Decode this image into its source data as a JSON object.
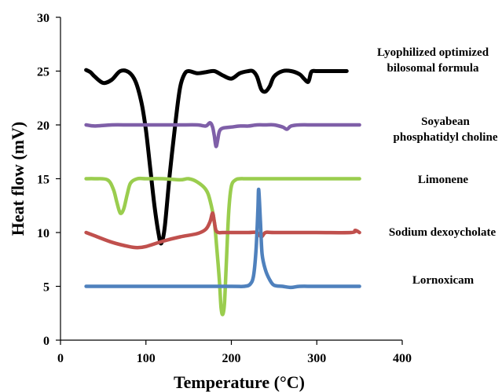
{
  "chart_data": {
    "type": "line",
    "title": "",
    "xlabel": "Temperature (°C)",
    "ylabel": "Heat flow (mV)",
    "xlim": [
      0,
      400
    ],
    "ylim": [
      0,
      30
    ],
    "xticks": [
      0,
      100,
      200,
      300,
      400
    ],
    "yticks": [
      0,
      5,
      10,
      15,
      20,
      25,
      30
    ],
    "grid": false,
    "legend_position": "right (labels beside curves)",
    "series": [
      {
        "name": "Lyophilized optimized bilosomal formula",
        "color": "#000000",
        "x": [
          30,
          35,
          40,
          50,
          60,
          70,
          80,
          88,
          95,
          100,
          105,
          110,
          115,
          118,
          122,
          128,
          135,
          140,
          145,
          150,
          160,
          170,
          180,
          190,
          200,
          210,
          220,
          225,
          230,
          235,
          240,
          245,
          250,
          260,
          270,
          280,
          285,
          290,
          293,
          295,
          300,
          310,
          320,
          335
        ],
        "y": [
          25.1,
          24.9,
          24.5,
          23.9,
          24.2,
          25.0,
          24.9,
          24.0,
          22.0,
          19.5,
          16.0,
          12.5,
          9.8,
          9.0,
          10.5,
          15.5,
          20.5,
          23.5,
          24.7,
          25.0,
          24.8,
          24.9,
          25.0,
          24.6,
          24.3,
          24.8,
          25.0,
          25.0,
          24.5,
          23.3,
          23.1,
          23.6,
          24.5,
          25.0,
          25.0,
          24.7,
          24.3,
          24.0,
          24.8,
          25.0,
          25.0,
          25.0,
          25.0,
          25.0
        ]
      },
      {
        "name": "Soyabean phosphatidyl choline",
        "color": "#7F5FA8",
        "x": [
          30,
          40,
          60,
          80,
          100,
          120,
          140,
          160,
          170,
          175,
          178,
          180,
          182,
          184,
          186,
          190,
          200,
          210,
          220,
          230,
          240,
          250,
          260,
          265,
          270,
          280,
          300,
          350
        ],
        "y": [
          20.0,
          19.9,
          20.0,
          20.0,
          20.0,
          20.0,
          20.0,
          20.0,
          19.9,
          20.2,
          19.8,
          19.0,
          18.0,
          18.6,
          19.4,
          19.7,
          19.8,
          19.9,
          19.9,
          20.0,
          20.0,
          20.0,
          19.8,
          19.6,
          19.9,
          20.0,
          20.0,
          20.0
        ]
      },
      {
        "name": "Limonene",
        "color": "#9ACD4E",
        "x": [
          30,
          40,
          55,
          62,
          66,
          70,
          74,
          78,
          82,
          90,
          100,
          120,
          140,
          150,
          160,
          170,
          175,
          180,
          183,
          186,
          188,
          190,
          192,
          194,
          197,
          200,
          205,
          210,
          220,
          250,
          300,
          350
        ],
        "y": [
          15.0,
          15.0,
          14.9,
          14.0,
          12.8,
          11.8,
          12.2,
          13.5,
          14.6,
          15.0,
          15.0,
          15.0,
          14.9,
          15.0,
          14.7,
          14.0,
          13.0,
          11.0,
          8.5,
          5.5,
          3.0,
          2.4,
          3.5,
          7.0,
          12.0,
          14.3,
          14.9,
          15.0,
          15.0,
          15.0,
          15.0,
          15.0
        ]
      },
      {
        "name": "Sodium dexoycholate",
        "color": "#C0504D",
        "x": [
          30,
          40,
          60,
          80,
          90,
          100,
          120,
          140,
          160,
          170,
          175,
          178,
          180,
          182,
          185,
          190,
          200,
          220,
          230,
          235,
          240,
          250,
          300,
          340,
          345,
          350
        ],
        "y": [
          10.0,
          9.7,
          9.1,
          8.7,
          8.6,
          8.7,
          9.2,
          9.6,
          9.9,
          10.3,
          11.0,
          11.8,
          11.0,
          10.2,
          10.0,
          10.0,
          10.0,
          10.0,
          10.0,
          9.6,
          10.0,
          10.0,
          10.0,
          10.0,
          10.2,
          10.0
        ]
      },
      {
        "name": "Lornoxicam",
        "color": "#4F81BD",
        "x": [
          30,
          60,
          100,
          150,
          200,
          215,
          222,
          226,
          229,
          231,
          232,
          234,
          236,
          240,
          245,
          250,
          260,
          270,
          280,
          300,
          350
        ],
        "y": [
          5.0,
          5.0,
          5.0,
          5.0,
          5.0,
          5.0,
          5.2,
          6.0,
          8.5,
          12.0,
          14.0,
          11.0,
          8.0,
          6.5,
          5.6,
          5.1,
          5.0,
          4.9,
          5.0,
          5.0,
          5.0
        ]
      }
    ],
    "labels": [
      {
        "lines": [
          "Lyophilized optimized",
          "bilosomal formula"
        ]
      },
      {
        "lines": [
          "Soyabean",
          "phosphatidyl choline"
        ]
      },
      {
        "lines": [
          "Limonene"
        ]
      },
      {
        "lines": [
          "Sodium dexoycholate"
        ]
      },
      {
        "lines": [
          "Lornoxicam"
        ]
      }
    ]
  }
}
